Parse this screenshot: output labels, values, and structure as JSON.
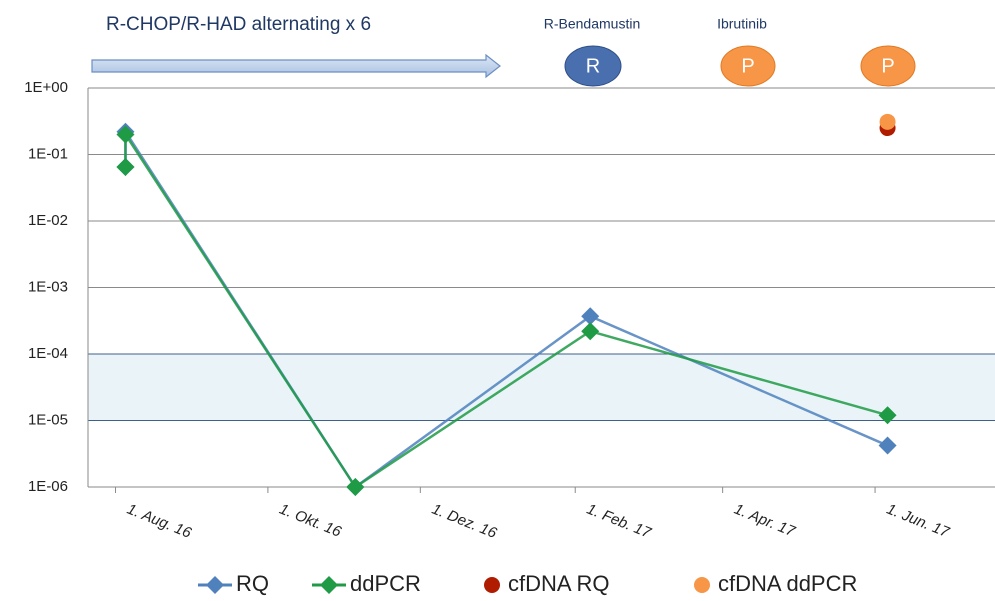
{
  "chart_data": {
    "type": "line",
    "log_scale": true,
    "grid": true,
    "annotations": [
      "R-CHOP/R-HAD alternating x 6",
      "R-Bendamustin",
      "Ibrutinib"
    ],
    "badges": [
      "R",
      "P",
      "P"
    ],
    "shaded_range": [
      1e-05,
      0.0001
    ],
    "xlim": [
      "2016-07-21",
      "2017-07-19"
    ],
    "xticks": [
      {
        "value": "2016-08-01",
        "label": "1. Aug. 16"
      },
      {
        "value": "2016-10-01",
        "label": "1. Okt. 16"
      },
      {
        "value": "2016-12-01",
        "label": "1. Dez. 16"
      },
      {
        "value": "2017-02-01",
        "label": "1. Feb. 17"
      },
      {
        "value": "2017-04-01",
        "label": "1. Apr. 17"
      },
      {
        "value": "2017-06-01",
        "label": "1. Jun. 17"
      }
    ],
    "ylim": [
      1e-06,
      1
    ],
    "yticks": [
      {
        "value": 1,
        "label": "1E+00"
      },
      {
        "value": 0.1,
        "label": "1E-01"
      },
      {
        "value": 0.01,
        "label": "1E-02"
      },
      {
        "value": 0.001,
        "label": "1E-03"
      },
      {
        "value": 0.0001,
        "label": "1E-04"
      },
      {
        "value": 1e-05,
        "label": "1E-05"
      },
      {
        "value": 1e-06,
        "label": "1E-06"
      }
    ],
    "series": [
      {
        "name": "RQ",
        "color": "#4f81bd",
        "marker": "diamond",
        "x": [
          "2016-08-05",
          "2016-08-05",
          "2016-11-05",
          "2017-02-07",
          "2017-06-06"
        ],
        "values": [
          0.065,
          0.22,
          1e-06,
          0.00037,
          4.2e-06
        ]
      },
      {
        "name": "ddPCR",
        "color": "#1f9a45",
        "marker": "diamond",
        "x": [
          "2016-08-05",
          "2016-08-05",
          "2016-11-05",
          "2017-02-07",
          "2017-06-06"
        ],
        "values": [
          0.065,
          0.2,
          1e-06,
          0.00022,
          1.2e-05
        ]
      },
      {
        "name": "cfDNA RQ",
        "color": "#b01c00",
        "marker": "circle",
        "x": [
          "2017-06-06"
        ],
        "values": [
          0.25
        ]
      },
      {
        "name": "cfDNA ddPCR",
        "color": "#f79646",
        "marker": "circle",
        "x": [
          "2017-06-06"
        ],
        "values": [
          0.31
        ]
      }
    ]
  }
}
